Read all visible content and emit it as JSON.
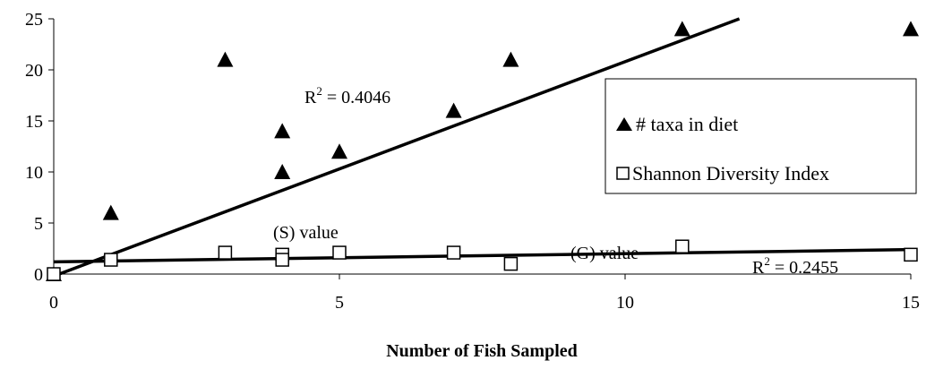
{
  "chart_data": {
    "type": "scatter",
    "title": "",
    "xlabel": "Number of Fish Sampled",
    "ylabel": "",
    "xlim": [
      0,
      15
    ],
    "ylim": [
      0,
      25
    ],
    "x_ticks": [
      0,
      5,
      10,
      15
    ],
    "y_ticks": [
      0,
      5,
      10,
      15,
      20,
      25
    ],
    "grid": false,
    "legend_position": "right",
    "series": [
      {
        "name": "# taxa in diet",
        "marker": "triangle-filled",
        "color": "#000000",
        "points": [
          [
            0,
            0
          ],
          [
            1,
            6
          ],
          [
            3,
            21
          ],
          [
            4,
            14
          ],
          [
            4,
            10
          ],
          [
            5,
            12
          ],
          [
            7,
            16
          ],
          [
            8,
            21
          ],
          [
            11,
            24
          ],
          [
            15,
            24
          ]
        ],
        "trendline": {
          "intercept": -0.2,
          "slope": 2.1,
          "r2_label": "R",
          "r2_sup": "2",
          "r2_value": " = 0.4046"
        }
      },
      {
        "name": "Shannon Diversity Index",
        "marker": "square-open",
        "color": "#000000",
        "points": [
          [
            0,
            0
          ],
          [
            1,
            1.4
          ],
          [
            3,
            2.1
          ],
          [
            4,
            1.9
          ],
          [
            4,
            1.4
          ],
          [
            5,
            2.1
          ],
          [
            7,
            2.1
          ],
          [
            8,
            1.0
          ],
          [
            11,
            2.7
          ],
          [
            15,
            1.9
          ]
        ],
        "trendline": {
          "intercept": 1.2,
          "slope": 0.08,
          "r2_label": "R",
          "r2_sup": "2",
          "r2_value": " = 0.2455"
        }
      }
    ],
    "annotations": [
      "(S) value",
      "(G) value"
    ]
  }
}
